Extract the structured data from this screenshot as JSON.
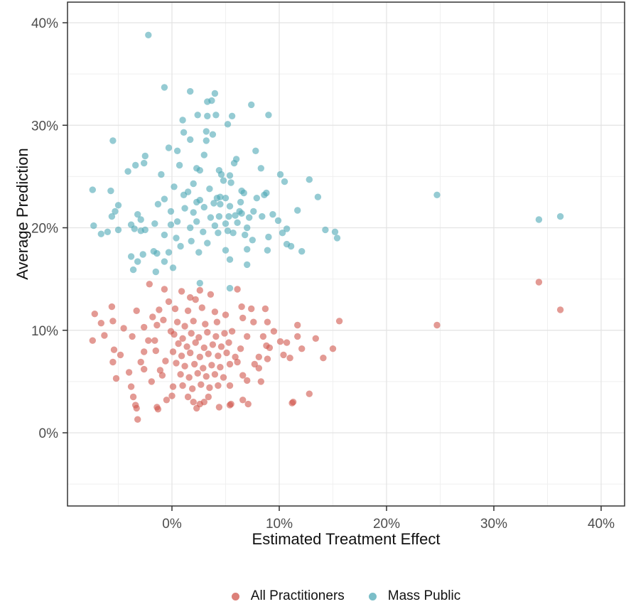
{
  "chart_data": {
    "type": "scatter",
    "title": "",
    "xlabel": "Estimated Treatment Effect",
    "ylabel": "Average Prediction",
    "x_ticks": [
      {
        "v": 0,
        "label": "0%"
      },
      {
        "v": 10,
        "label": "10%"
      },
      {
        "v": 20,
        "label": "20%"
      },
      {
        "v": 30,
        "label": "30%"
      },
      {
        "v": 40,
        "label": "40%"
      }
    ],
    "y_ticks": [
      {
        "v": 0,
        "label": "0%"
      },
      {
        "v": 10,
        "label": "10%"
      },
      {
        "v": 20,
        "label": "20%"
      },
      {
        "v": 30,
        "label": "30%"
      },
      {
        "v": 40,
        "label": "40%"
      }
    ],
    "x_minor": [
      -5,
      5,
      15,
      25,
      35
    ],
    "y_minor": [
      -5,
      5,
      15,
      25,
      35
    ],
    "xlim": [
      -9.7,
      42.2
    ],
    "ylim": [
      -7.1,
      42.0
    ],
    "grid": "major+minor",
    "legend_position": "bottom",
    "point_opacity": 0.6,
    "point_radius": 4.7,
    "colors": {
      "grid_major": "#e3e3e3",
      "grid_minor": "#efefef",
      "panel_border": "#333333",
      "tick_mark": "#333333",
      "tick_text": "#4d4d4d"
    },
    "series": [
      {
        "name": "All Practitioners",
        "color": "#D0564C",
        "points": [
          [
            -2.1,
            14.5
          ],
          [
            -0.7,
            14.0
          ],
          [
            1.7,
            13.2
          ],
          [
            2.6,
            13.9
          ],
          [
            -7.2,
            11.6
          ],
          [
            -5.6,
            12.3
          ],
          [
            -3.3,
            11.9
          ],
          [
            -6.6,
            10.7
          ],
          [
            -5.5,
            10.9
          ],
          [
            -2.6,
            10.3
          ],
          [
            -1.4,
            10.5
          ],
          [
            -7.4,
            9.0
          ],
          [
            -3.7,
            9.4
          ],
          [
            -1.6,
            9.0
          ],
          [
            -0.1,
            9.9
          ],
          [
            -5.4,
            8.1
          ],
          [
            -2.6,
            7.9
          ],
          [
            -5.5,
            6.9
          ],
          [
            -2.9,
            6.9
          ],
          [
            -2.6,
            6.2
          ],
          [
            -4.0,
            5.9
          ],
          [
            -5.2,
            5.3
          ],
          [
            -0.9,
            5.6
          ],
          [
            -3.8,
            4.5
          ],
          [
            -3.6,
            3.5
          ],
          [
            -3.3,
            2.4
          ],
          [
            -1.4,
            2.5
          ],
          [
            -3.2,
            1.3
          ],
          [
            -0.5,
            3.2
          ],
          [
            0.1,
            4.5
          ],
          [
            -1.9,
            5.0
          ],
          [
            6.1,
            14.0
          ],
          [
            6.5,
            12.3
          ],
          [
            7.4,
            12.1
          ],
          [
            8.7,
            12.1
          ],
          [
            6.6,
            11.2
          ],
          [
            7.6,
            10.8
          ],
          [
            8.9,
            10.8
          ],
          [
            15.6,
            10.9
          ],
          [
            11.7,
            10.5
          ],
          [
            9.5,
            9.9
          ],
          [
            11.7,
            9.4
          ],
          [
            13.4,
            9.2
          ],
          [
            10.1,
            8.9
          ],
          [
            10.7,
            8.8
          ],
          [
            12.1,
            8.2
          ],
          [
            15.0,
            8.2
          ],
          [
            14.1,
            7.3
          ],
          [
            10.4,
            7.6
          ],
          [
            11.0,
            7.3
          ],
          [
            7.0,
            9.4
          ],
          [
            8.5,
            9.4
          ],
          [
            8.8,
            8.5
          ],
          [
            9.1,
            8.3
          ],
          [
            8.1,
            7.4
          ],
          [
            8.9,
            7.2
          ],
          [
            6.4,
            8.2
          ],
          [
            6.1,
            6.9
          ],
          [
            7.7,
            6.7
          ],
          [
            8.1,
            6.3
          ],
          [
            6.6,
            5.6
          ],
          [
            7.0,
            5.1
          ],
          [
            8.3,
            5.0
          ],
          [
            5.4,
            4.6
          ],
          [
            6.6,
            3.2
          ],
          [
            11.3,
            3.0
          ],
          [
            12.8,
            3.8
          ],
          [
            5.5,
            2.8
          ],
          [
            4.4,
            2.5
          ],
          [
            -3.4,
            2.7
          ],
          [
            -1.3,
            2.3
          ],
          [
            0.0,
            3.6
          ],
          [
            1.5,
            3.5
          ],
          [
            2.0,
            3.0
          ],
          [
            2.3,
            2.4
          ],
          [
            2.6,
            2.8
          ],
          [
            3.0,
            3.0
          ],
          [
            3.4,
            3.5
          ],
          [
            5.4,
            2.7
          ],
          [
            7.1,
            2.8
          ],
          [
            11.2,
            2.9
          ],
          [
            0.5,
            10.8
          ],
          [
            1.2,
            10.4
          ],
          [
            2.0,
            10.9
          ],
          [
            3.1,
            10.6
          ],
          [
            4.2,
            10.8
          ],
          [
            0.2,
            9.6
          ],
          [
            1.0,
            9.2
          ],
          [
            1.8,
            9.7
          ],
          [
            2.5,
            9.3
          ],
          [
            3.3,
            9.8
          ],
          [
            4.1,
            9.4
          ],
          [
            4.9,
            9.7
          ],
          [
            5.6,
            9.9
          ],
          [
            0.6,
            8.7
          ],
          [
            1.4,
            8.4
          ],
          [
            2.2,
            8.8
          ],
          [
            3.0,
            8.3
          ],
          [
            3.8,
            8.6
          ],
          [
            4.6,
            8.4
          ],
          [
            5.3,
            8.8
          ],
          [
            0.1,
            7.9
          ],
          [
            0.9,
            7.5
          ],
          [
            1.7,
            7.8
          ],
          [
            2.6,
            7.4
          ],
          [
            3.4,
            7.7
          ],
          [
            4.3,
            7.5
          ],
          [
            5.1,
            7.8
          ],
          [
            5.9,
            7.4
          ],
          [
            0.4,
            6.8
          ],
          [
            1.2,
            6.5
          ],
          [
            2.1,
            6.7
          ],
          [
            2.9,
            6.3
          ],
          [
            3.7,
            6.6
          ],
          [
            4.5,
            6.4
          ],
          [
            5.4,
            6.7
          ],
          [
            0.8,
            5.7
          ],
          [
            1.6,
            5.4
          ],
          [
            2.4,
            5.8
          ],
          [
            3.2,
            5.5
          ],
          [
            4.0,
            5.7
          ],
          [
            4.8,
            5.4
          ],
          [
            1.0,
            4.6
          ],
          [
            1.9,
            4.3
          ],
          [
            2.7,
            4.7
          ],
          [
            3.5,
            4.4
          ],
          [
            4.3,
            4.6
          ],
          [
            0.3,
            12.1
          ],
          [
            1.5,
            11.9
          ],
          [
            2.8,
            12.2
          ],
          [
            4.0,
            11.8
          ],
          [
            5.0,
            11.5
          ],
          [
            2.2,
            13.0
          ],
          [
            3.6,
            13.5
          ],
          [
            0.9,
            13.8
          ],
          [
            -0.3,
            12.8
          ],
          [
            -1.2,
            12.0
          ],
          [
            -1.8,
            11.3
          ],
          [
            -0.8,
            11.0
          ],
          [
            -1.5,
            8.0
          ],
          [
            -0.6,
            7.0
          ],
          [
            -1.1,
            6.1
          ],
          [
            -2.2,
            9.0
          ],
          [
            -4.5,
            10.2
          ],
          [
            -4.8,
            7.6
          ],
          [
            -6.3,
            9.5
          ],
          [
            24.7,
            10.5
          ],
          [
            34.2,
            14.7
          ],
          [
            36.2,
            12.0
          ]
        ]
      },
      {
        "name": "Mass Public",
        "color": "#4FA8B5",
        "points": [
          [
            -2.2,
            38.8
          ],
          [
            -0.7,
            33.7
          ],
          [
            1.7,
            33.3
          ],
          [
            3.3,
            32.3
          ],
          [
            2.4,
            31.0
          ],
          [
            3.3,
            30.9
          ],
          [
            1.0,
            30.5
          ],
          [
            3.2,
            29.4
          ],
          [
            1.1,
            29.3
          ],
          [
            1.7,
            28.6
          ],
          [
            -5.5,
            28.5
          ],
          [
            3.2,
            28.5
          ],
          [
            -0.3,
            27.8
          ],
          [
            0.5,
            27.5
          ],
          [
            3.0,
            27.1
          ],
          [
            -2.5,
            27.0
          ],
          [
            4.0,
            33.1
          ],
          [
            3.7,
            32.4
          ],
          [
            7.4,
            32.0
          ],
          [
            4.1,
            31.0
          ],
          [
            5.6,
            30.9
          ],
          [
            9.0,
            31.0
          ],
          [
            5.2,
            30.1
          ],
          [
            3.8,
            29.1
          ],
          [
            7.8,
            27.5
          ],
          [
            6.0,
            26.7
          ],
          [
            -4.1,
            25.5
          ],
          [
            -3.4,
            26.1
          ],
          [
            -2.6,
            26.3
          ],
          [
            -1.0,
            25.2
          ],
          [
            0.7,
            26.1
          ],
          [
            2.3,
            25.8
          ],
          [
            2.6,
            25.6
          ],
          [
            -7.4,
            23.7
          ],
          [
            -5.7,
            23.6
          ],
          [
            -5.0,
            22.2
          ],
          [
            -5.3,
            21.6
          ],
          [
            -5.6,
            21.1
          ],
          [
            -3.2,
            21.3
          ],
          [
            -2.9,
            20.8
          ],
          [
            -1.3,
            22.3
          ],
          [
            -0.7,
            22.8
          ],
          [
            -0.1,
            21.6
          ],
          [
            1.1,
            23.2
          ],
          [
            1.5,
            23.5
          ],
          [
            2.3,
            22.5
          ],
          [
            2.6,
            22.7
          ],
          [
            -7.3,
            20.2
          ],
          [
            -6.6,
            19.4
          ],
          [
            -6.0,
            19.6
          ],
          [
            -5.0,
            19.8
          ],
          [
            -3.8,
            20.3
          ],
          [
            -3.5,
            19.9
          ],
          [
            -2.9,
            19.7
          ],
          [
            -2.5,
            19.8
          ],
          [
            -1.6,
            20.4
          ],
          [
            -0.7,
            19.3
          ],
          [
            -0.1,
            20.3
          ],
          [
            0.4,
            19.0
          ],
          [
            1.7,
            20.0
          ],
          [
            2.3,
            20.6
          ],
          [
            -3.8,
            17.2
          ],
          [
            -3.2,
            16.7
          ],
          [
            -2.7,
            17.4
          ],
          [
            -1.7,
            17.7
          ],
          [
            -1.4,
            17.5
          ],
          [
            -0.7,
            16.7
          ],
          [
            -0.3,
            17.6
          ],
          [
            -3.6,
            15.9
          ],
          [
            -1.5,
            15.7
          ],
          [
            0.1,
            16.1
          ],
          [
            2.6,
            14.6
          ],
          [
            5.8,
            26.3
          ],
          [
            4.4,
            25.6
          ],
          [
            4.6,
            25.2
          ],
          [
            5.4,
            25.1
          ],
          [
            8.3,
            25.8
          ],
          [
            10.1,
            25.2
          ],
          [
            10.5,
            24.5
          ],
          [
            12.8,
            24.7
          ],
          [
            5.5,
            24.4
          ],
          [
            6.5,
            23.6
          ],
          [
            6.7,
            23.4
          ],
          [
            4.5,
            23.0
          ],
          [
            5.0,
            22.9
          ],
          [
            4.2,
            22.9
          ],
          [
            7.9,
            22.9
          ],
          [
            8.6,
            23.2
          ],
          [
            8.8,
            23.4
          ],
          [
            13.6,
            23.0
          ],
          [
            6.4,
            22.5
          ],
          [
            4.5,
            22.3
          ],
          [
            5.4,
            22.1
          ],
          [
            6.3,
            21.6
          ],
          [
            6.5,
            21.4
          ],
          [
            7.6,
            21.6
          ],
          [
            8.4,
            21.1
          ],
          [
            5.3,
            21.1
          ],
          [
            4.4,
            21.1
          ],
          [
            5.9,
            21.2
          ],
          [
            11.7,
            21.7
          ],
          [
            9.4,
            21.3
          ],
          [
            9.9,
            20.7
          ],
          [
            10.7,
            19.9
          ],
          [
            14.3,
            19.8
          ],
          [
            15.2,
            19.6
          ],
          [
            15.4,
            19.0
          ],
          [
            5.2,
            19.7
          ],
          [
            5.7,
            19.5
          ],
          [
            6.8,
            19.3
          ],
          [
            7.5,
            18.8
          ],
          [
            9.0,
            19.1
          ],
          [
            10.3,
            19.5
          ],
          [
            7.0,
            20.0
          ],
          [
            10.7,
            18.4
          ],
          [
            11.1,
            18.2
          ],
          [
            12.1,
            17.7
          ],
          [
            5.0,
            17.8
          ],
          [
            7.0,
            17.9
          ],
          [
            8.9,
            17.8
          ],
          [
            5.4,
            16.9
          ],
          [
            7.0,
            16.4
          ],
          [
            5.4,
            14.1
          ],
          [
            2.0,
            24.3
          ],
          [
            0.2,
            24.0
          ],
          [
            3.5,
            23.8
          ],
          [
            4.8,
            24.6
          ],
          [
            3.0,
            22.0
          ],
          [
            2.0,
            21.5
          ],
          [
            3.6,
            21.0
          ],
          [
            4.0,
            20.2
          ],
          [
            2.9,
            19.6
          ],
          [
            1.2,
            21.9
          ],
          [
            0.5,
            20.6
          ],
          [
            1.8,
            18.7
          ],
          [
            3.3,
            18.5
          ],
          [
            4.3,
            19.5
          ],
          [
            2.5,
            17.6
          ],
          [
            0.8,
            18.2
          ],
          [
            6.1,
            20.5
          ],
          [
            7.2,
            21.0
          ],
          [
            5.0,
            20.4
          ],
          [
            3.9,
            22.4
          ],
          [
            24.7,
            23.2
          ],
          [
            34.2,
            20.8
          ],
          [
            36.2,
            21.1
          ]
        ]
      }
    ]
  },
  "legend": {
    "items": [
      {
        "label": "All Practitioners",
        "color": "#D0564C"
      },
      {
        "label": "Mass Public",
        "color": "#4FA8B5"
      }
    ]
  },
  "axis": {
    "x_title": "Estimated Treatment Effect",
    "y_title": "Average Prediction"
  }
}
